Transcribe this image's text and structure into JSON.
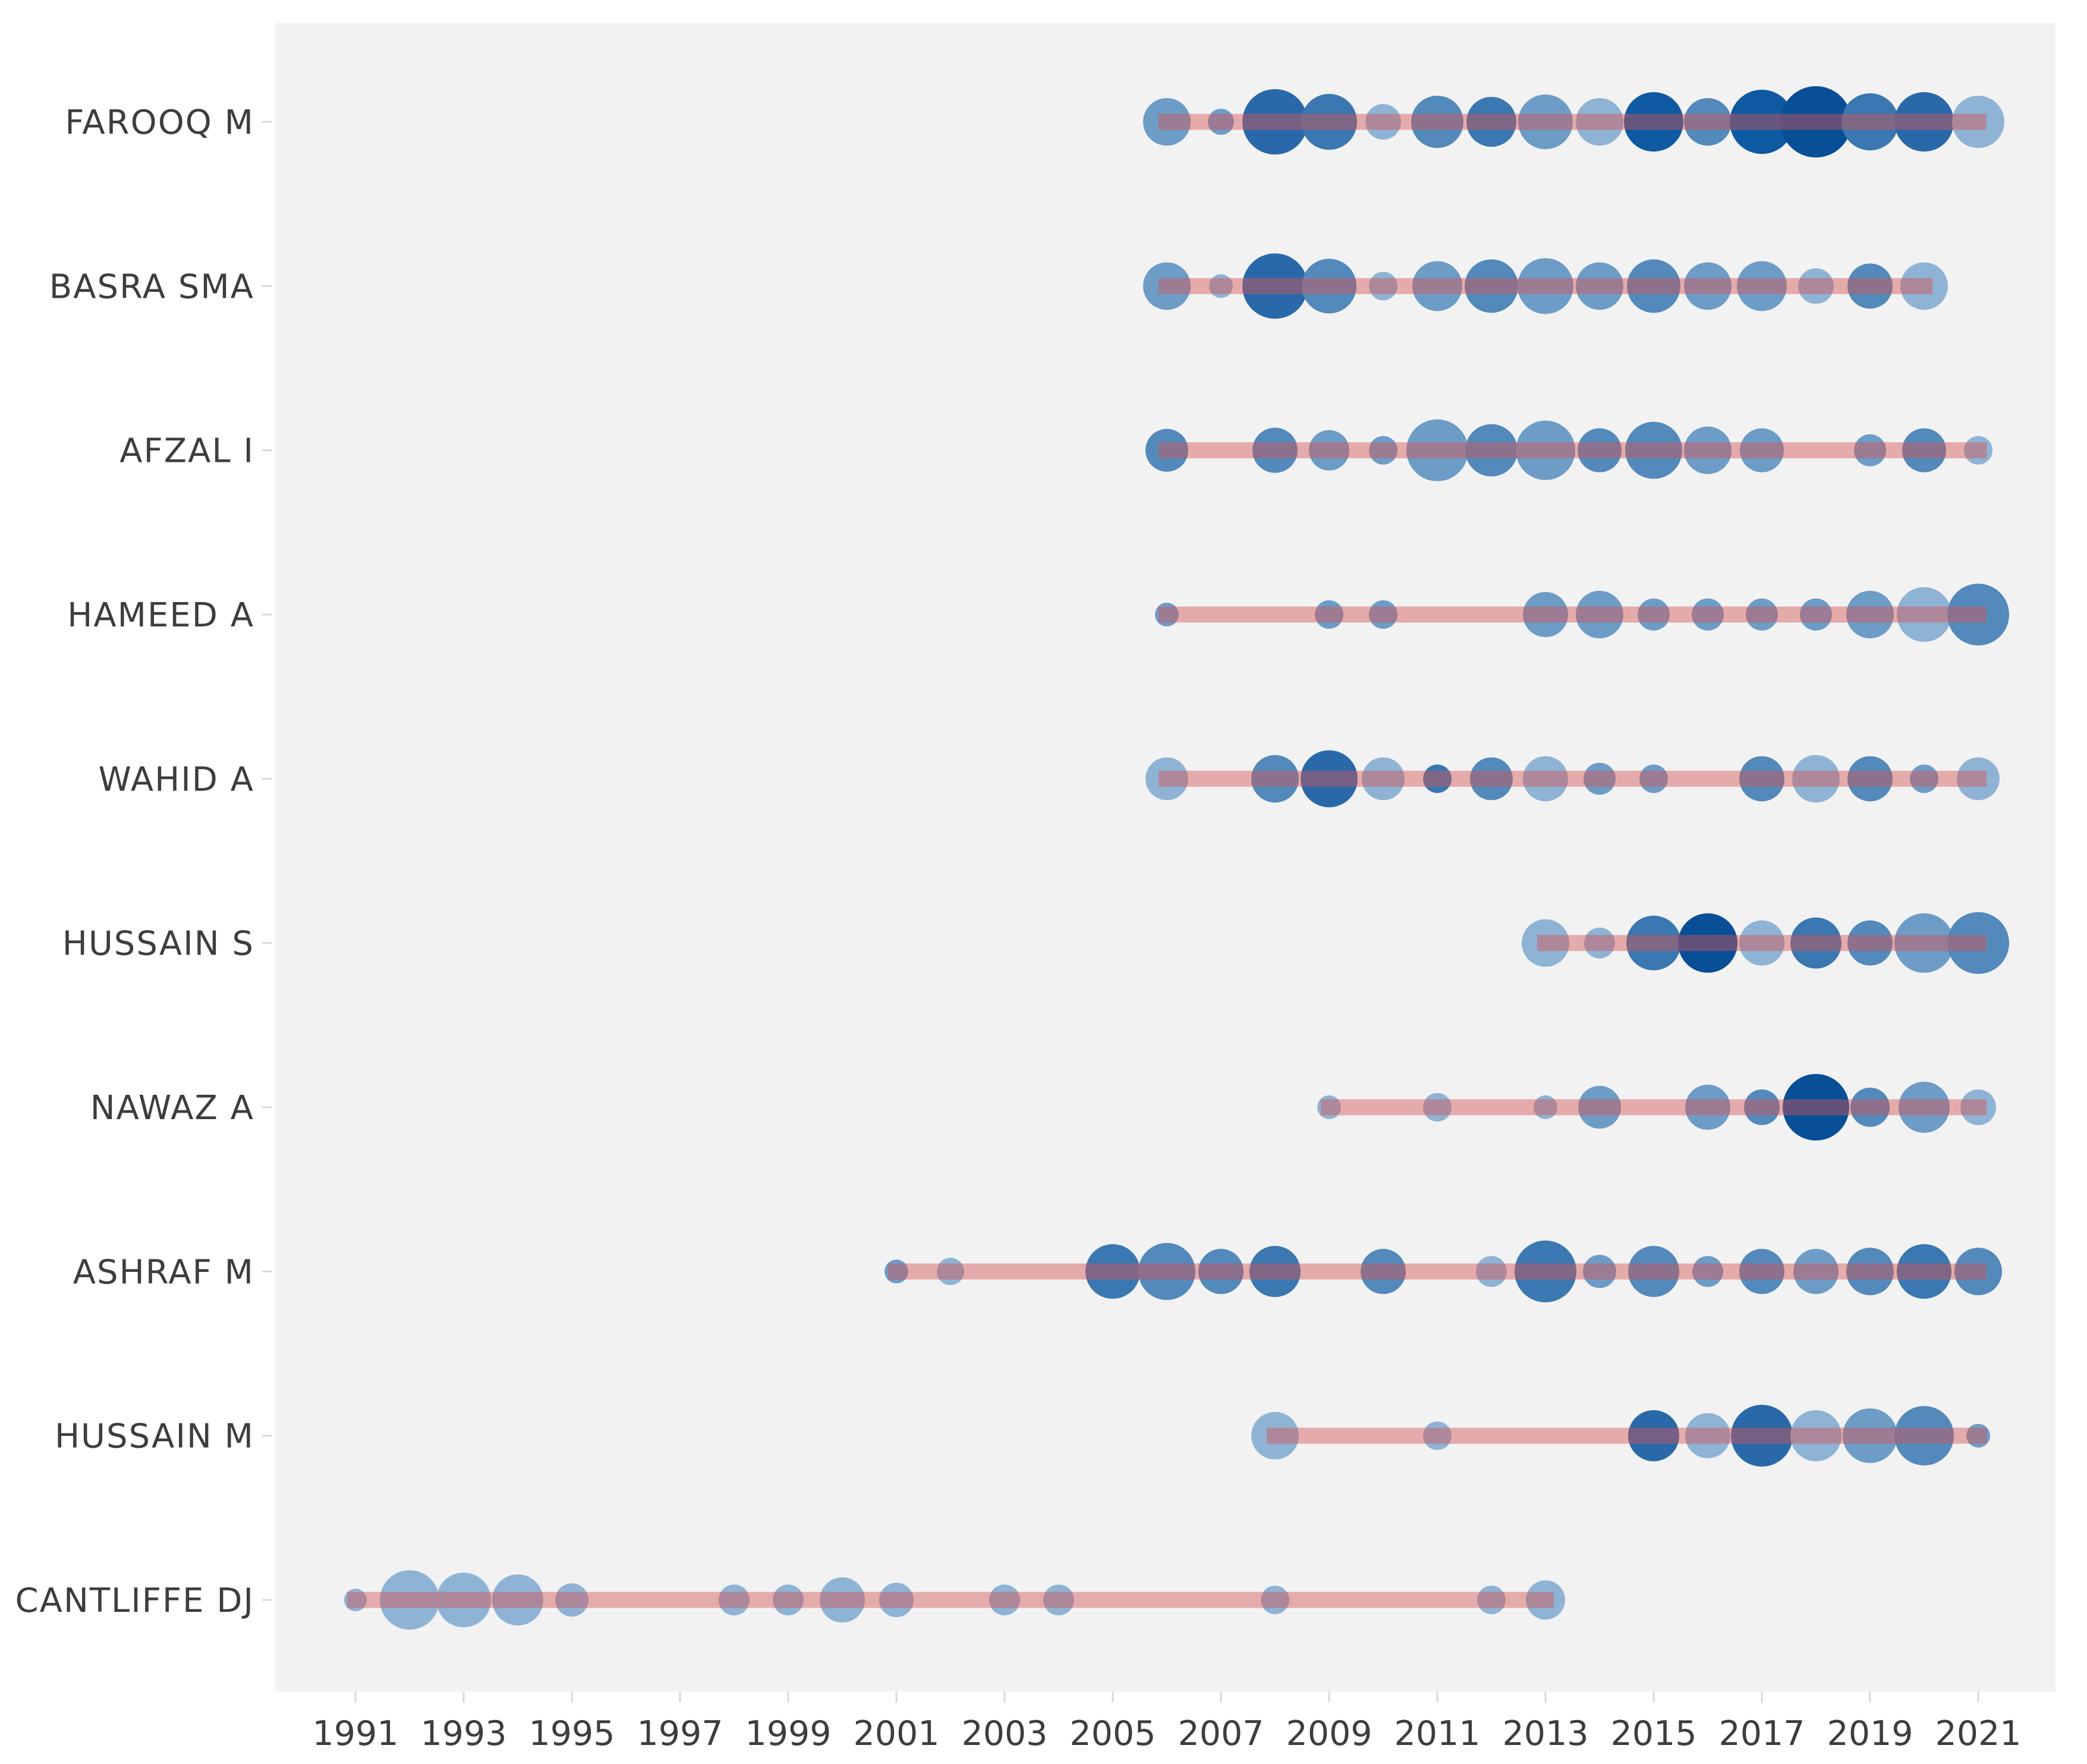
{
  "figure": {
    "background": "#ffffff",
    "plot_background": "#f2f2f3",
    "axis_text_color": "#3d3d3d",
    "tick_mark_color": "#d8d8d8"
  },
  "chart_data": {
    "type": "scatter",
    "subtype": "bubble-timeline-authors-production-over-time",
    "title": "",
    "xlabel": "",
    "ylabel": "",
    "grid": false,
    "legend": "none",
    "x_axis": {
      "ticks": [
        1991,
        1993,
        1995,
        1997,
        1999,
        2001,
        2003,
        2005,
        2007,
        2009,
        2011,
        2013,
        2015,
        2017,
        2019,
        2021
      ],
      "range": [
        1989.5,
        2022.5
      ]
    },
    "y_axis": {
      "categories": [
        "FAROOQ M",
        "BASRA SMA",
        "AFZAL I",
        "HAMEED A",
        "WAHID A",
        "HUSSAIN S",
        "NAWAZ A",
        "ASHRAF M",
        "HUSSAIN M",
        "CANTLIFFE DJ"
      ]
    },
    "timeline_color": "rgba(213,85,85,0.45)",
    "bubble_color_scale": {
      "lightest": "#a9c4de",
      "light": "#8fb3d4",
      "medium": "#6d9cc7",
      "medium_dark": "#5389bb",
      "dark": "#3b77b0",
      "darker": "#2a69a9",
      "navy": "#0e59a2",
      "darkest": "#084f98"
    },
    "series": [
      {
        "author": "FAROOQ M",
        "start": 2006,
        "end": 2021,
        "points": [
          {
            "year": 2006,
            "r": 40,
            "color": "#6d9cc7"
          },
          {
            "year": 2007,
            "r": 22,
            "color": "#6d9cc7"
          },
          {
            "year": 2008,
            "r": 55,
            "color": "#2a69a9"
          },
          {
            "year": 2009,
            "r": 47,
            "color": "#3b77b0"
          },
          {
            "year": 2010,
            "r": 30,
            "color": "#8fb3d4"
          },
          {
            "year": 2011,
            "r": 44,
            "color": "#5389bb"
          },
          {
            "year": 2012,
            "r": 42,
            "color": "#3b77b0"
          },
          {
            "year": 2013,
            "r": 46,
            "color": "#6d9cc7"
          },
          {
            "year": 2014,
            "r": 40,
            "color": "#8fb3d4"
          },
          {
            "year": 2015,
            "r": 50,
            "color": "#0e59a2"
          },
          {
            "year": 2016,
            "r": 40,
            "color": "#5389bb"
          },
          {
            "year": 2017,
            "r": 54,
            "color": "#0e59a2"
          },
          {
            "year": 2018,
            "r": 60,
            "color": "#084f98"
          },
          {
            "year": 2019,
            "r": 48,
            "color": "#3b77b0"
          },
          {
            "year": 2020,
            "r": 50,
            "color": "#2a69a9"
          },
          {
            "year": 2021,
            "r": 44,
            "color": "#8fb3d4"
          }
        ]
      },
      {
        "author": "BASRA SMA",
        "start": 2006,
        "end": 2020,
        "points": [
          {
            "year": 2006,
            "r": 40,
            "color": "#6d9cc7"
          },
          {
            "year": 2007,
            "r": 20,
            "color": "#8fb3d4"
          },
          {
            "year": 2008,
            "r": 55,
            "color": "#2a69a9"
          },
          {
            "year": 2009,
            "r": 46,
            "color": "#5389bb"
          },
          {
            "year": 2010,
            "r": 24,
            "color": "#8fb3d4"
          },
          {
            "year": 2011,
            "r": 42,
            "color": "#6d9cc7"
          },
          {
            "year": 2012,
            "r": 45,
            "color": "#5389bb"
          },
          {
            "year": 2013,
            "r": 47,
            "color": "#6d9cc7"
          },
          {
            "year": 2014,
            "r": 40,
            "color": "#6d9cc7"
          },
          {
            "year": 2015,
            "r": 45,
            "color": "#5389bb"
          },
          {
            "year": 2016,
            "r": 40,
            "color": "#6d9cc7"
          },
          {
            "year": 2017,
            "r": 42,
            "color": "#6d9cc7"
          },
          {
            "year": 2018,
            "r": 30,
            "color": "#8fb3d4"
          },
          {
            "year": 2019,
            "r": 38,
            "color": "#5389bb"
          },
          {
            "year": 2020,
            "r": 40,
            "color": "#8fb3d4"
          }
        ]
      },
      {
        "author": "AFZAL I",
        "start": 2006,
        "end": 2021,
        "points": [
          {
            "year": 2006,
            "r": 36,
            "color": "#5389bb"
          },
          {
            "year": 2008,
            "r": 38,
            "color": "#5389bb"
          },
          {
            "year": 2009,
            "r": 34,
            "color": "#6d9cc7"
          },
          {
            "year": 2010,
            "r": 24,
            "color": "#6d9cc7"
          },
          {
            "year": 2011,
            "r": 52,
            "color": "#6d9cc7"
          },
          {
            "year": 2012,
            "r": 44,
            "color": "#5389bb"
          },
          {
            "year": 2013,
            "r": 50,
            "color": "#6d9cc7"
          },
          {
            "year": 2014,
            "r": 37,
            "color": "#5389bb"
          },
          {
            "year": 2015,
            "r": 48,
            "color": "#5389bb"
          },
          {
            "year": 2016,
            "r": 40,
            "color": "#6d9cc7"
          },
          {
            "year": 2017,
            "r": 37,
            "color": "#6d9cc7"
          },
          {
            "year": 2019,
            "r": 27,
            "color": "#6d9cc7"
          },
          {
            "year": 2020,
            "r": 37,
            "color": "#5389bb"
          },
          {
            "year": 2021,
            "r": 24,
            "color": "#8fb3d4"
          }
        ]
      },
      {
        "author": "HAMEED A",
        "start": 2006,
        "end": 2021,
        "points": [
          {
            "year": 2006,
            "r": 20,
            "color": "#6d9cc7"
          },
          {
            "year": 2009,
            "r": 24,
            "color": "#6d9cc7"
          },
          {
            "year": 2010,
            "r": 24,
            "color": "#6d9cc7"
          },
          {
            "year": 2013,
            "r": 38,
            "color": "#6d9cc7"
          },
          {
            "year": 2014,
            "r": 40,
            "color": "#6d9cc7"
          },
          {
            "year": 2015,
            "r": 27,
            "color": "#6d9cc7"
          },
          {
            "year": 2016,
            "r": 27,
            "color": "#6d9cc7"
          },
          {
            "year": 2017,
            "r": 27,
            "color": "#6d9cc7"
          },
          {
            "year": 2018,
            "r": 27,
            "color": "#6d9cc7"
          },
          {
            "year": 2019,
            "r": 40,
            "color": "#6d9cc7"
          },
          {
            "year": 2020,
            "r": 46,
            "color": "#8fb3d4"
          },
          {
            "year": 2021,
            "r": 52,
            "color": "#5389bb"
          }
        ]
      },
      {
        "author": "WAHID A",
        "start": 2006,
        "end": 2021,
        "points": [
          {
            "year": 2006,
            "r": 36,
            "color": "#8fb3d4"
          },
          {
            "year": 2008,
            "r": 40,
            "color": "#5389bb"
          },
          {
            "year": 2009,
            "r": 48,
            "color": "#2a69a9"
          },
          {
            "year": 2010,
            "r": 36,
            "color": "#8fb3d4"
          },
          {
            "year": 2011,
            "r": 24,
            "color": "#3b77b0"
          },
          {
            "year": 2012,
            "r": 36,
            "color": "#5389bb"
          },
          {
            "year": 2013,
            "r": 38,
            "color": "#8fb3d4"
          },
          {
            "year": 2014,
            "r": 27,
            "color": "#6d9cc7"
          },
          {
            "year": 2015,
            "r": 24,
            "color": "#6d9cc7"
          },
          {
            "year": 2017,
            "r": 38,
            "color": "#5389bb"
          },
          {
            "year": 2018,
            "r": 40,
            "color": "#8fb3d4"
          },
          {
            "year": 2019,
            "r": 38,
            "color": "#5389bb"
          },
          {
            "year": 2020,
            "r": 24,
            "color": "#6d9cc7"
          },
          {
            "year": 2021,
            "r": 36,
            "color": "#8fb3d4"
          }
        ]
      },
      {
        "author": "HUSSAIN S",
        "start": 2013,
        "end": 2021,
        "points": [
          {
            "year": 2013,
            "r": 40,
            "color": "#8fb3d4"
          },
          {
            "year": 2014,
            "r": 26,
            "color": "#8fb3d4"
          },
          {
            "year": 2015,
            "r": 46,
            "color": "#3b77b0"
          },
          {
            "year": 2016,
            "r": 50,
            "color": "#084f98"
          },
          {
            "year": 2017,
            "r": 38,
            "color": "#8fb3d4"
          },
          {
            "year": 2018,
            "r": 43,
            "color": "#3b77b0"
          },
          {
            "year": 2019,
            "r": 38,
            "color": "#5389bb"
          },
          {
            "year": 2020,
            "r": 50,
            "color": "#6d9cc7"
          },
          {
            "year": 2021,
            "r": 52,
            "color": "#5389bb"
          }
        ]
      },
      {
        "author": "NAWAZ A",
        "start": 2009,
        "end": 2021,
        "points": [
          {
            "year": 2009,
            "r": 20,
            "color": "#8fb3d4"
          },
          {
            "year": 2011,
            "r": 24,
            "color": "#8fb3d4"
          },
          {
            "year": 2013,
            "r": 20,
            "color": "#8fb3d4"
          },
          {
            "year": 2014,
            "r": 36,
            "color": "#6d9cc7"
          },
          {
            "year": 2016,
            "r": 38,
            "color": "#6d9cc7"
          },
          {
            "year": 2017,
            "r": 30,
            "color": "#5389bb"
          },
          {
            "year": 2018,
            "r": 56,
            "color": "#084f98"
          },
          {
            "year": 2019,
            "r": 33,
            "color": "#5389bb"
          },
          {
            "year": 2020,
            "r": 43,
            "color": "#6d9cc7"
          },
          {
            "year": 2021,
            "r": 30,
            "color": "#8fb3d4"
          }
        ]
      },
      {
        "author": "ASHRAF M",
        "start": 2001,
        "end": 2021,
        "points": [
          {
            "year": 2001,
            "r": 20,
            "color": "#6d9cc7"
          },
          {
            "year": 2002,
            "r": 23,
            "color": "#8fb3d4"
          },
          {
            "year": 2005,
            "r": 46,
            "color": "#3b77b0"
          },
          {
            "year": 2006,
            "r": 48,
            "color": "#5389bb"
          },
          {
            "year": 2007,
            "r": 38,
            "color": "#5389bb"
          },
          {
            "year": 2008,
            "r": 43,
            "color": "#3b77b0"
          },
          {
            "year": 2010,
            "r": 38,
            "color": "#5389bb"
          },
          {
            "year": 2012,
            "r": 26,
            "color": "#8fb3d4"
          },
          {
            "year": 2013,
            "r": 52,
            "color": "#3b77b0"
          },
          {
            "year": 2014,
            "r": 28,
            "color": "#6d9cc7"
          },
          {
            "year": 2015,
            "r": 43,
            "color": "#5389bb"
          },
          {
            "year": 2016,
            "r": 26,
            "color": "#6d9cc7"
          },
          {
            "year": 2017,
            "r": 38,
            "color": "#5389bb"
          },
          {
            "year": 2018,
            "r": 38,
            "color": "#6d9cc7"
          },
          {
            "year": 2019,
            "r": 40,
            "color": "#5389bb"
          },
          {
            "year": 2020,
            "r": 46,
            "color": "#3b77b0"
          },
          {
            "year": 2021,
            "r": 40,
            "color": "#5389bb"
          }
        ]
      },
      {
        "author": "HUSSAIN M",
        "start": 2008,
        "end": 2021,
        "points": [
          {
            "year": 2008,
            "r": 40,
            "color": "#8fb3d4"
          },
          {
            "year": 2011,
            "r": 24,
            "color": "#8fb3d4"
          },
          {
            "year": 2015,
            "r": 43,
            "color": "#2a69a9"
          },
          {
            "year": 2016,
            "r": 38,
            "color": "#8fb3d4"
          },
          {
            "year": 2017,
            "r": 52,
            "color": "#2a69a9"
          },
          {
            "year": 2018,
            "r": 43,
            "color": "#8fb3d4"
          },
          {
            "year": 2019,
            "r": 46,
            "color": "#6d9cc7"
          },
          {
            "year": 2020,
            "r": 50,
            "color": "#5389bb"
          },
          {
            "year": 2021,
            "r": 20,
            "color": "#6d9cc7"
          }
        ]
      },
      {
        "author": "CANTLIFFE DJ",
        "start": 1991,
        "end": 2013,
        "points": [
          {
            "year": 1991,
            "r": 19,
            "color": "#8fb3d4"
          },
          {
            "year": 1992,
            "r": 50,
            "color": "#8fb3d4"
          },
          {
            "year": 1993,
            "r": 46,
            "color": "#8fb3d4"
          },
          {
            "year": 1994,
            "r": 43,
            "color": "#8fb3d4"
          },
          {
            "year": 1995,
            "r": 28,
            "color": "#8fb3d4"
          },
          {
            "year": 1998,
            "r": 26,
            "color": "#8fb3d4"
          },
          {
            "year": 1999,
            "r": 26,
            "color": "#8fb3d4"
          },
          {
            "year": 2000,
            "r": 38,
            "color": "#8fb3d4"
          },
          {
            "year": 2001,
            "r": 29,
            "color": "#8fb3d4"
          },
          {
            "year": 2003,
            "r": 26,
            "color": "#8fb3d4"
          },
          {
            "year": 2004,
            "r": 26,
            "color": "#8fb3d4"
          },
          {
            "year": 2008,
            "r": 24,
            "color": "#8fb3d4"
          },
          {
            "year": 2012,
            "r": 24,
            "color": "#8fb3d4"
          },
          {
            "year": 2013,
            "r": 33,
            "color": "#8fb3d4"
          }
        ]
      }
    ]
  }
}
